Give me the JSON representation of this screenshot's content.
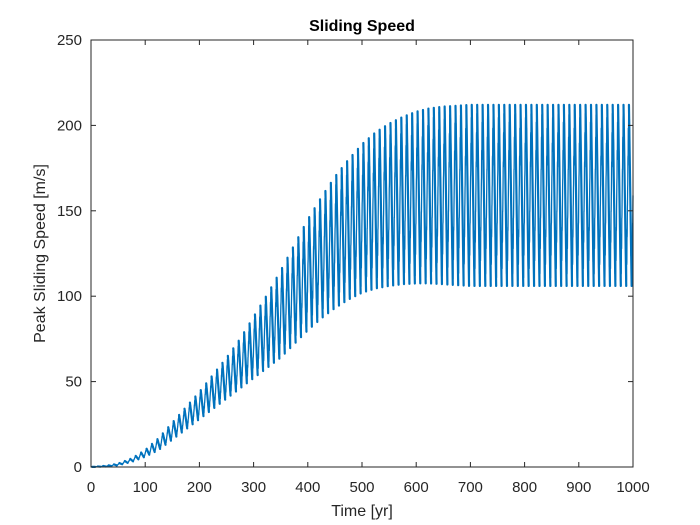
{
  "chart_data": {
    "type": "area",
    "title": "Sliding Speed",
    "xlabel": "Time [yr]",
    "ylabel": "Peak Sliding Speed [m/s]",
    "xlim": [
      0,
      1000
    ],
    "ylim": [
      0,
      250
    ],
    "xticks": [
      0,
      100,
      200,
      300,
      400,
      500,
      600,
      700,
      800,
      900,
      1000
    ],
    "yticks": [
      0,
      50,
      100,
      150,
      200,
      250
    ],
    "grid": false,
    "legend": "none",
    "box": true,
    "series": [
      {
        "color": "#0072bd",
        "oscillation_cycles": 100,
        "envelope": {
          "x": [
            0,
            30,
            50,
            75,
            100,
            125,
            150,
            175,
            200,
            225,
            250,
            275,
            300,
            325,
            350,
            375,
            400,
            425,
            450,
            475,
            500,
            525,
            550,
            575,
            600,
            625,
            650,
            675,
            700,
            750,
            800,
            850,
            900,
            950,
            1000
          ],
          "upper": [
            0,
            0.8,
            2,
            5,
            10,
            17,
            26,
            35,
            44,
            54,
            64,
            75,
            88,
            101,
            115,
            130,
            145,
            158,
            170,
            180,
            189,
            196,
            201,
            205,
            208,
            210,
            211,
            211.5,
            212,
            212,
            212,
            212,
            212,
            212,
            212
          ],
          "lower": [
            0,
            0.3,
            1,
            3,
            6,
            10,
            16,
            22,
            28,
            34,
            40,
            46,
            52,
            58,
            64,
            72,
            80,
            87,
            93,
            98,
            102,
            104.5,
            106,
            107,
            107.5,
            107.5,
            107,
            106.5,
            106,
            106,
            106,
            106,
            106,
            106,
            106
          ]
        }
      }
    ]
  }
}
